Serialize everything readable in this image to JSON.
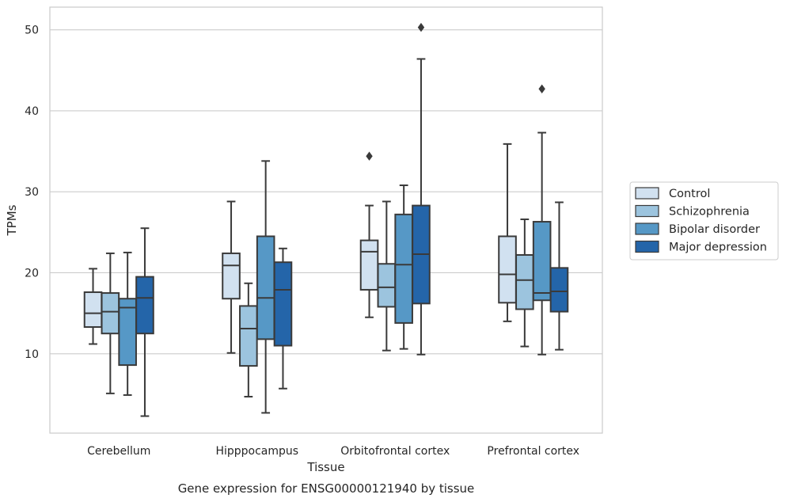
{
  "chart_data": {
    "type": "box",
    "title": "",
    "caption": "Gene expression for ENSG00000121940 by tissue",
    "xlabel": "Tissue",
    "ylabel": "TPMs",
    "ylim": [
      0.2,
      52.8
    ],
    "yticks": [
      10,
      20,
      30,
      40,
      50
    ],
    "grid": true,
    "legend_position": "outside-right",
    "categories": [
      "Cerebellum",
      "Hipppocampus",
      "Orbitofrontal cortex",
      "Prefrontal cortex"
    ],
    "series": [
      {
        "name": "Control",
        "color": "#d1e1f0",
        "boxes": [
          {
            "whislo": 11.2,
            "q1": 13.3,
            "med": 15.0,
            "q3": 17.6,
            "whishi": 20.5,
            "fliers": []
          },
          {
            "whislo": 10.1,
            "q1": 16.8,
            "med": 20.9,
            "q3": 22.4,
            "whishi": 28.8,
            "fliers": []
          },
          {
            "whislo": 14.5,
            "q1": 17.9,
            "med": 22.6,
            "q3": 24.0,
            "whishi": 28.3,
            "fliers": [
              34.4
            ]
          },
          {
            "whislo": 14.0,
            "q1": 16.3,
            "med": 19.8,
            "q3": 24.5,
            "whishi": 35.9,
            "fliers": []
          }
        ]
      },
      {
        "name": "Schizophrenia",
        "color": "#9cc4de",
        "boxes": [
          {
            "whislo": 5.1,
            "q1": 12.5,
            "med": 15.2,
            "q3": 17.5,
            "whishi": 22.4,
            "fliers": []
          },
          {
            "whislo": 4.7,
            "q1": 8.5,
            "med": 13.1,
            "q3": 15.9,
            "whishi": 18.7,
            "fliers": []
          },
          {
            "whislo": 10.4,
            "q1": 15.8,
            "med": 18.2,
            "q3": 21.1,
            "whishi": 28.8,
            "fliers": []
          },
          {
            "whislo": 10.9,
            "q1": 15.5,
            "med": 19.1,
            "q3": 22.2,
            "whishi": 26.6,
            "fliers": []
          }
        ]
      },
      {
        "name": "Bipolar disorder",
        "color": "#5698c6",
        "boxes": [
          {
            "whislo": 4.9,
            "q1": 8.6,
            "med": 15.7,
            "q3": 16.8,
            "whishi": 22.5,
            "fliers": []
          },
          {
            "whislo": 2.7,
            "q1": 11.8,
            "med": 16.9,
            "q3": 24.5,
            "whishi": 33.8,
            "fliers": []
          },
          {
            "whislo": 10.6,
            "q1": 13.8,
            "med": 21.0,
            "q3": 27.2,
            "whishi": 30.8,
            "fliers": []
          },
          {
            "whislo": 9.9,
            "q1": 16.6,
            "med": 17.5,
            "q3": 26.3,
            "whishi": 37.3,
            "fliers": [
              42.7
            ]
          }
        ]
      },
      {
        "name": "Major depression",
        "color": "#2465a9",
        "boxes": [
          {
            "whislo": 2.3,
            "q1": 12.5,
            "med": 16.9,
            "q3": 19.5,
            "whishi": 25.5,
            "fliers": []
          },
          {
            "whislo": 5.7,
            "q1": 11.0,
            "med": 17.9,
            "q3": 21.3,
            "whishi": 23.0,
            "fliers": []
          },
          {
            "whislo": 9.9,
            "q1": 16.2,
            "med": 22.3,
            "q3": 28.3,
            "whishi": 46.4,
            "fliers": [
              50.3
            ]
          },
          {
            "whislo": 10.5,
            "q1": 15.2,
            "med": 17.7,
            "q3": 20.6,
            "whishi": 28.7,
            "fliers": []
          }
        ]
      }
    ]
  }
}
